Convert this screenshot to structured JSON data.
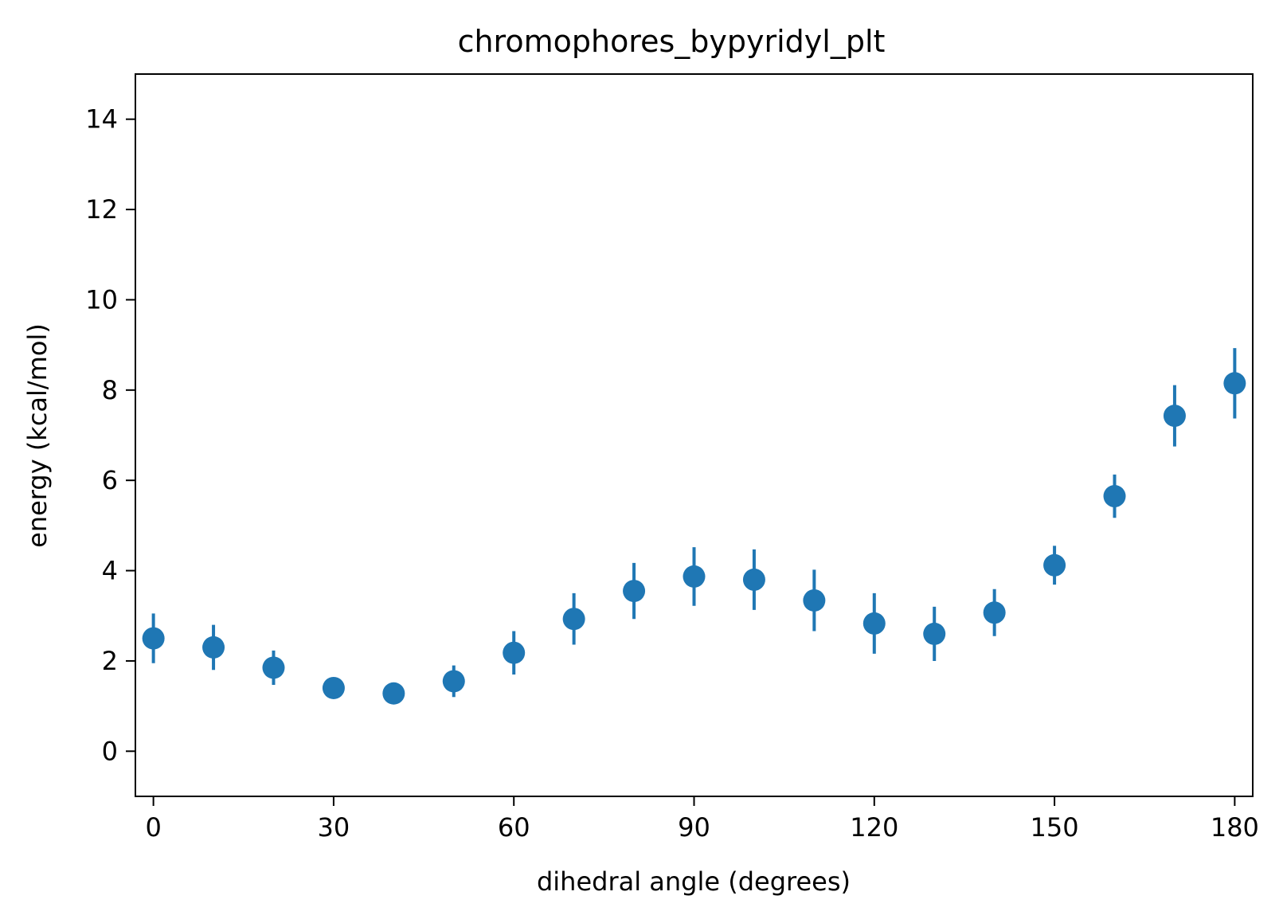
{
  "chart_data": {
    "type": "scatter",
    "title": "chromophores_bypyridyl_plt",
    "xlabel": "dihedral angle (degrees)",
    "ylabel": "energy (kcal/mol)",
    "xlim": [
      -3,
      183
    ],
    "ylim": [
      -1,
      15
    ],
    "xticks": [
      0,
      30,
      60,
      90,
      120,
      150,
      180
    ],
    "yticks": [
      0,
      2,
      4,
      6,
      8,
      10,
      12,
      14
    ],
    "grid": false,
    "marker_color": "#1f77b4",
    "series": [
      {
        "x": [
          0,
          10,
          20,
          30,
          40,
          50,
          60,
          70,
          80,
          90,
          100,
          110,
          120,
          130,
          140,
          150,
          160,
          170,
          180
        ],
        "y": [
          2.5,
          2.3,
          1.85,
          1.4,
          1.28,
          1.55,
          2.18,
          2.93,
          3.55,
          3.87,
          3.8,
          3.34,
          2.83,
          2.6,
          3.07,
          4.12,
          5.65,
          7.43,
          8.15
        ],
        "yerr": [
          0.55,
          0.5,
          0.38,
          0.15,
          0.15,
          0.35,
          0.48,
          0.57,
          0.62,
          0.65,
          0.67,
          0.68,
          0.67,
          0.6,
          0.52,
          0.43,
          0.48,
          0.68,
          0.78
        ]
      }
    ]
  }
}
